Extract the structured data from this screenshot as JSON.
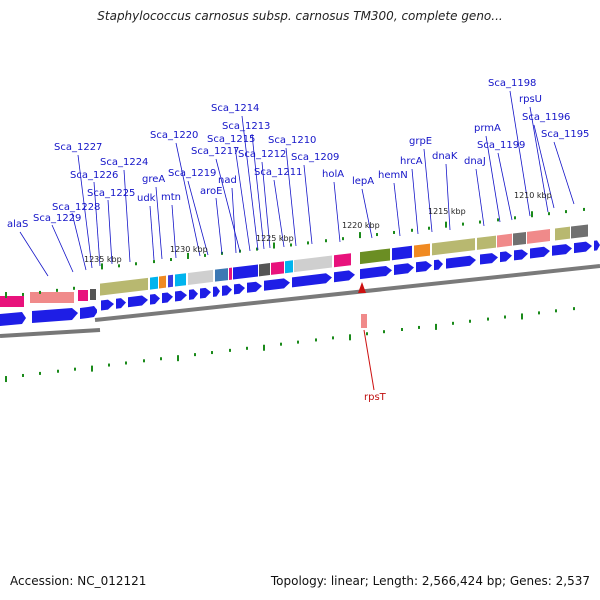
{
  "title": "Staphylococcus carnosus subsp. carnosus TM300, complete geno...",
  "footer": {
    "accession": "Accession: NC_012121",
    "summary": "Topology: linear; Length: 2,566,424 bp; Genes: 2,537"
  },
  "kbp_labels": [
    "1235 kbp",
    "1230 kbp",
    "1225 kbp",
    "1220 kbp",
    "1215 kbp",
    "1210 kbp"
  ],
  "gene_labels": [
    "alaS",
    "Sca_1229",
    "Sca_1228",
    "Sca_1227",
    "Sca_1226",
    "Sca_1225",
    "Sca_1224",
    "udk",
    "greA",
    "mtn",
    "Sca_1220",
    "Sca_1219",
    "aroE",
    "nad",
    "Sca_1217",
    "Sca_1215",
    "Sca_1214",
    "Sca_1213",
    "Sca_1212",
    "Sca_1211",
    "Sca_1210",
    "Sca_1209",
    "holA",
    "lepA",
    "hemN",
    "hrcA",
    "grpE",
    "dnaK",
    "dnaJ",
    "prmA",
    "Sca_1199",
    "Sca_1198",
    "rpsU",
    "Sca_1196",
    "Sca_1195"
  ],
  "highlight_label": "rpsT",
  "colors": {
    "gene_arrow": "#1e1ee6",
    "label_text": "#1515c8",
    "highlight": "#cc1010",
    "tick": "#1a8a1a"
  }
}
